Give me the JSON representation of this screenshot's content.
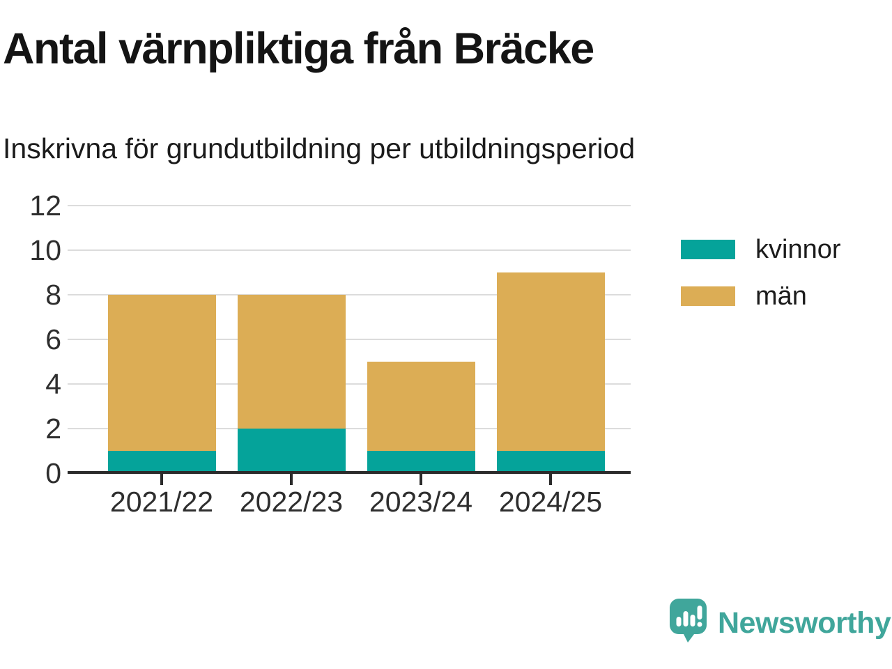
{
  "header": {
    "title": "Antal värnpliktiga från Bräcke",
    "subtitle": "Inskrivna för grundutbildning per utbildningsperiod"
  },
  "chart_data": {
    "type": "bar",
    "stacked": true,
    "title": "Antal värnpliktiga från Bräcke",
    "subtitle": "Inskrivna för grundutbildning per utbildningsperiod",
    "categories": [
      "2021/22",
      "2022/23",
      "2023/24",
      "2024/25"
    ],
    "series": [
      {
        "name": "kvinnor",
        "color": "#05A39A",
        "values": [
          1,
          2,
          1,
          1
        ]
      },
      {
        "name": "män",
        "color": "#DCAD55",
        "values": [
          7,
          6,
          4,
          8
        ]
      }
    ],
    "ylim": [
      0,
      12
    ],
    "yticks": [
      0,
      2,
      4,
      6,
      8,
      10,
      12
    ],
    "grid": "horizontal-on",
    "legend_position": "right"
  },
  "colors": {
    "grid": "#DCDCDC",
    "axis": "#2B2B2B",
    "brand": "#40A69B"
  },
  "footer": {
    "brand": "Newsworthy"
  }
}
